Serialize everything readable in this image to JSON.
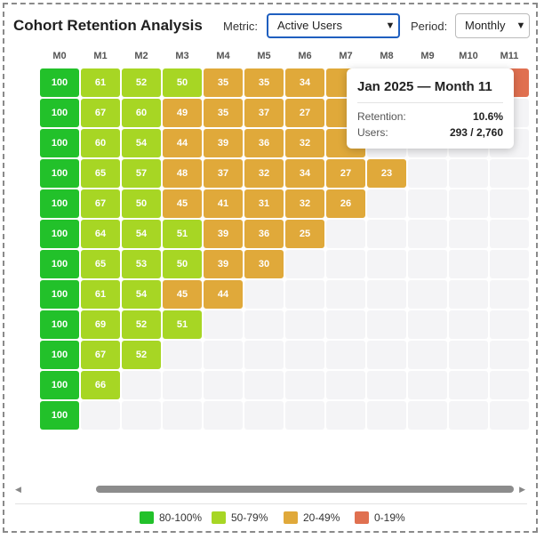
{
  "header": {
    "title": "Cohort Retention Analysis",
    "metric_label": "Metric:",
    "metric_value": "Active Users",
    "period_label": "Period:",
    "period_value": "Monthly"
  },
  "columns": [
    "M0",
    "M1",
    "M2",
    "M3",
    "M4",
    "M5",
    "M6",
    "M7",
    "M8",
    "M9",
    "M10",
    "M11"
  ],
  "rows": [
    [
      100,
      61,
      52,
      50,
      35,
      35,
      34,
      null,
      null,
      null,
      null,
      null
    ],
    [
      100,
      67,
      60,
      49,
      35,
      37,
      27,
      null
    ],
    [
      100,
      60,
      54,
      44,
      39,
      36,
      32,
      null
    ],
    [
      100,
      65,
      57,
      48,
      37,
      32,
      34,
      27,
      23
    ],
    [
      100,
      67,
      50,
      45,
      41,
      31,
      32,
      26
    ],
    [
      100,
      64,
      54,
      51,
      39,
      36,
      25
    ],
    [
      100,
      65,
      53,
      50,
      39,
      30
    ],
    [
      100,
      61,
      54,
      45,
      44
    ],
    [
      100,
      69,
      52,
      51
    ],
    [
      100,
      67,
      52
    ],
    [
      100,
      66
    ],
    [
      100
    ]
  ],
  "colors": {
    "band_80_100": "#22c12a",
    "band_50_79": "#a7d624",
    "band_20_49": "#e0a93a",
    "band_0_19": "#e07050",
    "accent": "#1f5fbf"
  },
  "tooltip": {
    "title": "Jan 2025 — Month 11",
    "retention_label": "Retention:",
    "retention_value": "10.6%",
    "users_label": "Users:",
    "users_value": "293 / 2,760"
  },
  "legend": [
    {
      "label": "80-100%",
      "color": "#22c12a"
    },
    {
      "label": "50-79%",
      "color": "#a7d624"
    },
    {
      "label": "20-49%",
      "color": "#e0a93a"
    },
    {
      "label": "0-19%",
      "color": "#e07050"
    }
  ]
}
